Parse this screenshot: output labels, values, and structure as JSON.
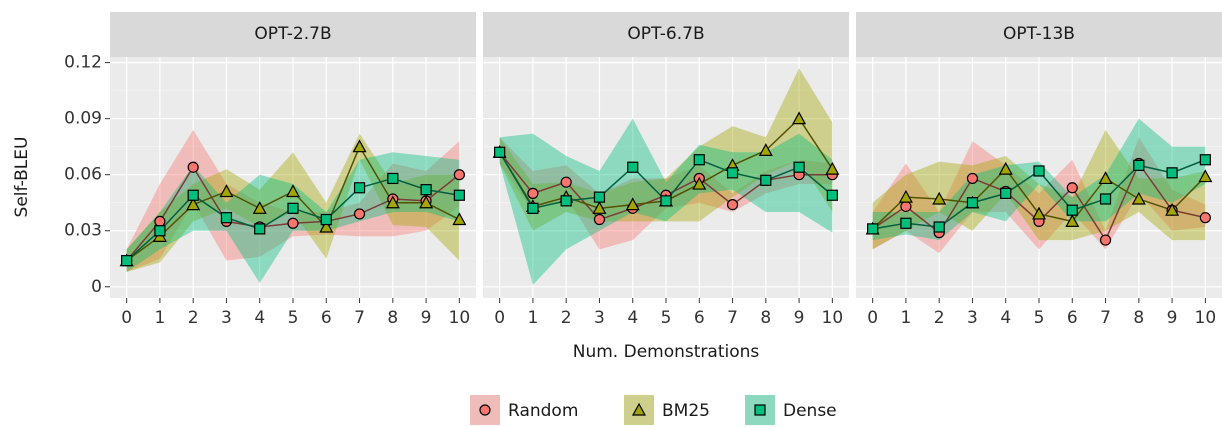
{
  "chart_data": [
    {
      "type": "line",
      "title": "OPT-2.7B",
      "ylabel": "Self-BLEU",
      "xlabel": "Num. Demonstrations",
      "x": [
        0,
        1,
        2,
        3,
        4,
        5,
        6,
        7,
        8,
        9,
        10
      ],
      "xlim": [
        -0.5,
        10.5
      ],
      "xticks": [
        0,
        1,
        2,
        3,
        4,
        5,
        6,
        7,
        8,
        9,
        10
      ],
      "ylim": [
        -0.006,
        0.123
      ],
      "yticks": [
        0,
        0.03,
        0.06,
        0.09,
        0.12
      ],
      "grid": true,
      "series": [
        {
          "name": "Random",
          "color": "#F8766D",
          "marker": "circle",
          "values": [
            0.014,
            0.035,
            0.064,
            0.035,
            0.032,
            0.034,
            0.035,
            0.039,
            0.047,
            0.046,
            0.06
          ],
          "lower": [
            0.008,
            0.015,
            0.045,
            0.014,
            0.016,
            0.027,
            0.028,
            0.027,
            0.027,
            0.03,
            0.043
          ],
          "upper": [
            0.02,
            0.055,
            0.084,
            0.055,
            0.045,
            0.04,
            0.04,
            0.045,
            0.066,
            0.062,
            0.078
          ]
        },
        {
          "name": "BM25",
          "color": "#A3A500",
          "marker": "triangle",
          "values": [
            0.014,
            0.027,
            0.044,
            0.051,
            0.042,
            0.051,
            0.032,
            0.075,
            0.045,
            0.045,
            0.036
          ],
          "lower": [
            0.008,
            0.013,
            0.035,
            0.042,
            0.032,
            0.04,
            0.015,
            0.068,
            0.033,
            0.032,
            0.014
          ],
          "upper": [
            0.02,
            0.04,
            0.055,
            0.063,
            0.052,
            0.072,
            0.045,
            0.082,
            0.055,
            0.06,
            0.06
          ]
        },
        {
          "name": "Dense",
          "color": "#00BF7D",
          "marker": "square",
          "values": [
            0.014,
            0.03,
            0.049,
            0.037,
            0.031,
            0.042,
            0.036,
            0.053,
            0.058,
            0.052,
            0.049
          ],
          "lower": [
            0.008,
            0.02,
            0.03,
            0.03,
            0.002,
            0.03,
            0.03,
            0.035,
            0.04,
            0.04,
            0.035
          ],
          "upper": [
            0.02,
            0.04,
            0.065,
            0.045,
            0.06,
            0.055,
            0.04,
            0.068,
            0.072,
            0.07,
            0.068
          ]
        }
      ]
    },
    {
      "type": "line",
      "title": "OPT-6.7B",
      "x": [
        0,
        1,
        2,
        3,
        4,
        5,
        6,
        7,
        8,
        9,
        10
      ],
      "xlim": [
        -0.5,
        10.5
      ],
      "xticks": [
        0,
        1,
        2,
        3,
        4,
        5,
        6,
        7,
        8,
        9,
        10
      ],
      "ylim": [
        -0.006,
        0.123
      ],
      "yticks": [
        0,
        0.03,
        0.06,
        0.09,
        0.12
      ],
      "grid": true,
      "series": [
        {
          "name": "Random",
          "color": "#F8766D",
          "marker": "circle",
          "values": [
            0.072,
            0.05,
            0.056,
            0.036,
            0.042,
            0.049,
            0.058,
            0.044,
            0.057,
            0.06,
            0.06
          ],
          "lower": [
            0.066,
            0.04,
            0.048,
            0.02,
            0.025,
            0.042,
            0.045,
            0.04,
            0.05,
            0.055,
            0.055
          ],
          "upper": [
            0.08,
            0.062,
            0.065,
            0.05,
            0.058,
            0.058,
            0.065,
            0.05,
            0.062,
            0.068,
            0.066
          ]
        },
        {
          "name": "BM25",
          "color": "#A3A500",
          "marker": "triangle",
          "values": [
            0.072,
            0.043,
            0.048,
            0.042,
            0.044,
            0.046,
            0.055,
            0.065,
            0.073,
            0.09,
            0.063
          ],
          "lower": [
            0.066,
            0.03,
            0.04,
            0.035,
            0.035,
            0.035,
            0.035,
            0.048,
            0.06,
            0.068,
            0.04
          ],
          "upper": [
            0.08,
            0.055,
            0.056,
            0.05,
            0.056,
            0.058,
            0.075,
            0.086,
            0.08,
            0.117,
            0.088
          ]
        },
        {
          "name": "Dense",
          "color": "#00BF7D",
          "marker": "square",
          "values": [
            0.072,
            0.042,
            0.046,
            0.048,
            0.064,
            0.046,
            0.068,
            0.061,
            0.057,
            0.064,
            0.049
          ],
          "lower": [
            0.066,
            0.001,
            0.02,
            0.03,
            0.04,
            0.035,
            0.05,
            0.052,
            0.04,
            0.04,
            0.029
          ],
          "upper": [
            0.08,
            0.082,
            0.07,
            0.062,
            0.09,
            0.056,
            0.076,
            0.072,
            0.072,
            0.082,
            0.068
          ]
        }
      ]
    },
    {
      "type": "line",
      "title": "OPT-13B",
      "x": [
        0,
        1,
        2,
        3,
        4,
        5,
        6,
        7,
        8,
        9,
        10
      ],
      "xlim": [
        -0.5,
        10.5
      ],
      "xticks": [
        0,
        1,
        2,
        3,
        4,
        5,
        6,
        7,
        8,
        9,
        10
      ],
      "ylim": [
        -0.006,
        0.123
      ],
      "yticks": [
        0,
        0.03,
        0.06,
        0.09,
        0.12
      ],
      "grid": true,
      "series": [
        {
          "name": "Random",
          "color": "#F8766D",
          "marker": "circle",
          "values": [
            0.031,
            0.043,
            0.029,
            0.058,
            0.051,
            0.035,
            0.053,
            0.025,
            0.066,
            0.041,
            0.037
          ],
          "lower": [
            0.02,
            0.03,
            0.018,
            0.04,
            0.04,
            0.02,
            0.04,
            0.02,
            0.05,
            0.03,
            0.032
          ],
          "upper": [
            0.04,
            0.066,
            0.04,
            0.078,
            0.065,
            0.05,
            0.068,
            0.03,
            0.08,
            0.052,
            0.044
          ]
        },
        {
          "name": "BM25",
          "color": "#A3A500",
          "marker": "triangle",
          "values": [
            0.031,
            0.048,
            0.047,
            0.045,
            0.063,
            0.039,
            0.035,
            0.058,
            0.047,
            0.041,
            0.059
          ],
          "lower": [
            0.02,
            0.03,
            0.04,
            0.03,
            0.05,
            0.025,
            0.025,
            0.03,
            0.04,
            0.025,
            0.025
          ],
          "upper": [
            0.045,
            0.06,
            0.067,
            0.065,
            0.07,
            0.055,
            0.048,
            0.084,
            0.058,
            0.058,
            0.062
          ]
        },
        {
          "name": "Dense",
          "color": "#00BF7D",
          "marker": "square",
          "values": [
            0.031,
            0.034,
            0.032,
            0.045,
            0.05,
            0.062,
            0.041,
            0.047,
            0.065,
            0.061,
            0.068
          ],
          "lower": [
            0.025,
            0.028,
            0.025,
            0.04,
            0.035,
            0.055,
            0.035,
            0.035,
            0.05,
            0.045,
            0.055
          ],
          "upper": [
            0.04,
            0.04,
            0.04,
            0.06,
            0.065,
            0.067,
            0.048,
            0.06,
            0.09,
            0.075,
            0.075
          ]
        }
      ]
    }
  ]
}
